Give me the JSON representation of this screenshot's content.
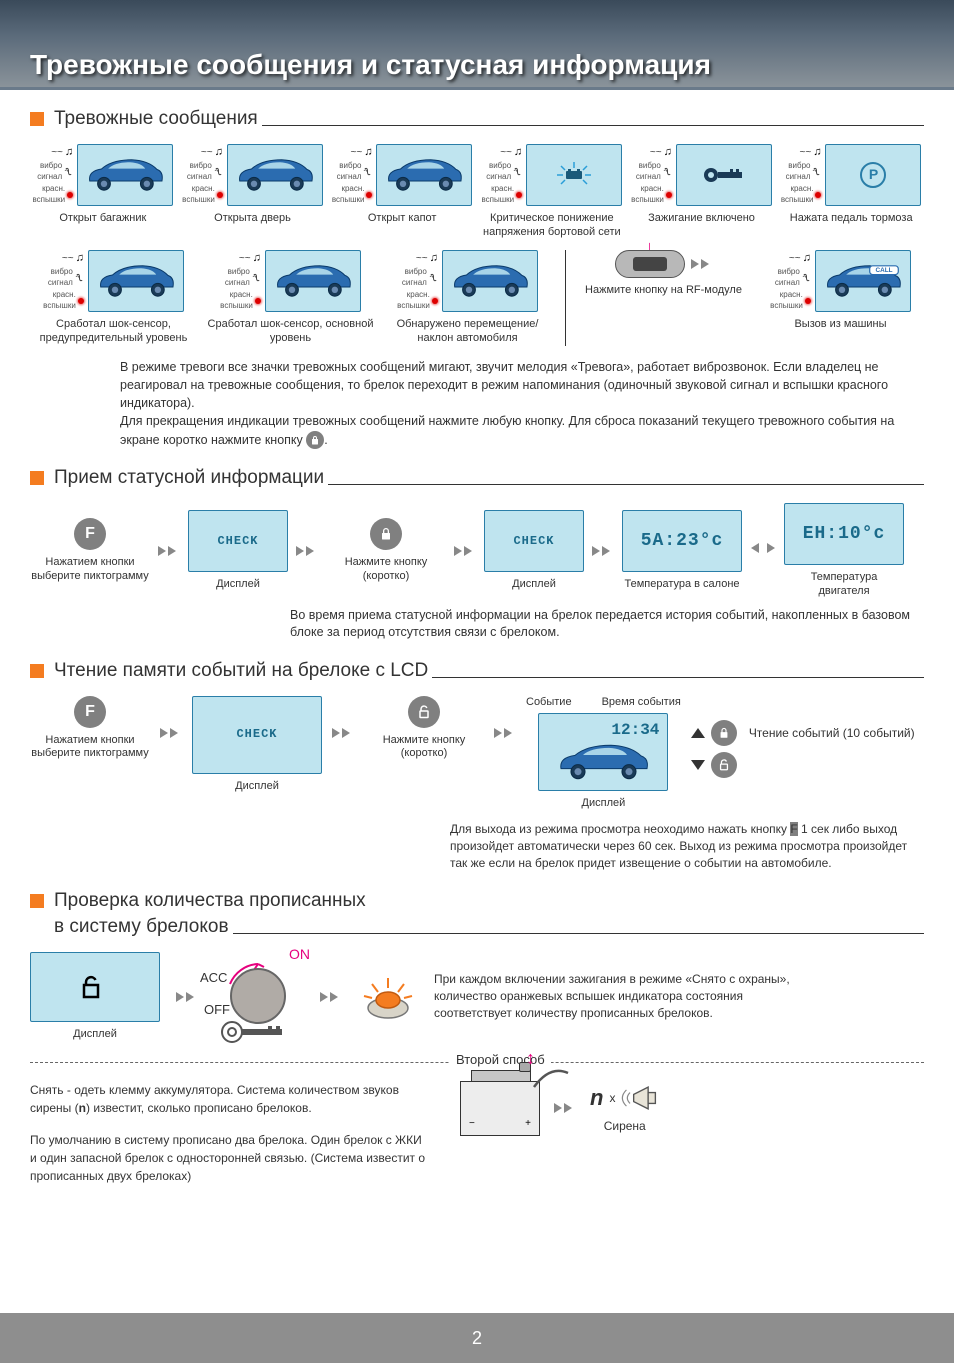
{
  "header": {
    "title": "Тревожные сообщения и статусная информация"
  },
  "page_number": "2",
  "section1": {
    "heading": "Тревожные сообщения",
    "indicators": {
      "wave_sound": "~~",
      "vibro": "вибро\nсигнал",
      "flash": "красн.\nвспышки"
    },
    "row1": [
      {
        "caption": "Открыт багажник"
      },
      {
        "caption": "Открыта дверь"
      },
      {
        "caption": "Открыт капот"
      },
      {
        "caption": "Критическое понижение напряжения бортовой сети"
      },
      {
        "caption": "Зажигание включено"
      },
      {
        "caption": "Нажата педаль тормоза",
        "icon": "P"
      }
    ],
    "row2": [
      {
        "caption": "Сработал шок-сенсор, предупредительный уровень"
      },
      {
        "caption": "Сработал шок-сенсор, основной уровень"
      },
      {
        "caption": "Обнаружено перемещение/наклон автомобиля"
      },
      {
        "caption": "Нажмите кнопку на RF-модуле"
      },
      {
        "caption": "Вызов из машины",
        "badge": "CALL"
      }
    ],
    "note": "В режиме тревоги все значки тревожных сообщений мигают, звучит мелодия «Тревога», работает виброзвонок. Если владелец не реагировал на тревожные сообщения, то брелок переходит в режим напоминания (одиночный звуковой сигнал и вспышки красного индикатора).\nДля прекращения индикации тревожных сообщений нажмите любую кнопку. Для сброса показаний текущего тревожного события на экране коротко нажмите кнопку "
  },
  "section2": {
    "heading": "Прием статусной информации",
    "steps": [
      {
        "type": "button",
        "label": "F",
        "caption": "Нажатием кнопки выберите пиктограмму"
      },
      {
        "type": "lcd",
        "text": "CHECK",
        "caption": "Дисплей"
      },
      {
        "type": "button",
        "icon": "lock",
        "caption": "Нажмите кнопку (коротко)"
      },
      {
        "type": "lcd",
        "text": "CHECK",
        "caption": "Дисплей"
      },
      {
        "type": "lcd",
        "text": "5A:23°c",
        "caption": "Температура в салоне"
      },
      {
        "type": "lcd",
        "text": "EH:10°c",
        "caption": "Температура двигателя"
      }
    ],
    "note": "Во время приема статусной информации на брелок передается история событий, накопленных в базовом блоке за период отсутствия связи с брелоком."
  },
  "section3": {
    "heading": "Чтение памяти событий на брелоке с LCD",
    "labels": {
      "event": "Событие",
      "time": "Время события"
    },
    "steps": [
      {
        "type": "button",
        "label": "F",
        "caption": "Нажатием кнопки выберите пиктограмму"
      },
      {
        "type": "lcd",
        "text": "CHECK",
        "caption": "Дисплей"
      },
      {
        "type": "button",
        "icon": "unlock",
        "caption": "Нажмите кнопку (коротко)"
      },
      {
        "type": "lcd-car",
        "time": "12:34",
        "caption": "Дисплей"
      }
    ],
    "readout": "Чтение событий (10 событий)",
    "note_prefix": "Для выхода из режима просмотра неоходимо нажать кнопку ",
    "note_suffix": " 1 сек либо выход произойдет автоматически через 60 сек. Выход из режима просмотра произойдет так же если на брелок придет извещение о событии на автомобиле."
  },
  "section4": {
    "heading": "Проверка количества прописанных в систему брелоков",
    "display_caption": "Дисплей",
    "ignition": {
      "on": "ON",
      "acc": "ACC",
      "off": "OFF"
    },
    "text": "При каждом включении зажигания в режиме «Снято с охраны», количество оранжевых вспышек индикатора состояния соответствует количеству прописанных брелоков.",
    "divider": "Второй способ",
    "second_text1": "Снять - одеть клемму аккумулятора. Система количеством звуков сирены (n) известит, сколько прописано брелоков.",
    "second_text2": "По умолчанию в систему прописано два брелока. Один брелок с ЖКИ и один запасной брелок с односторонней связью. (Система известит о прописанных двух брелоках)",
    "n_label": "n",
    "x_label": "x",
    "siren_caption": "Сирена"
  },
  "colors": {
    "lcd_bg": "#bfe4ef",
    "lcd_border": "#2a7ea8",
    "car_body": "#2b6cb0",
    "accent": "#f47c20",
    "magenta": "#e6007e",
    "gray_btn": "#808080"
  }
}
